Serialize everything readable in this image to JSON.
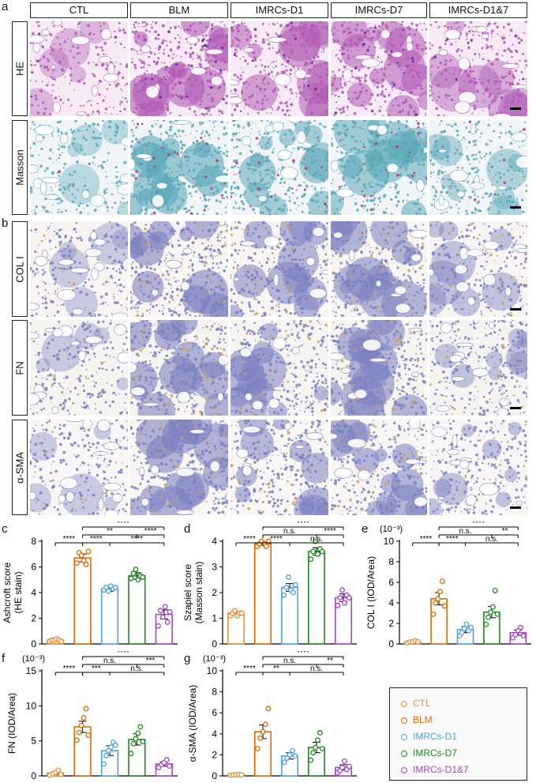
{
  "panel_letters": {
    "a": "a",
    "b": "b",
    "c": "c",
    "d": "d",
    "e": "e",
    "f": "f",
    "g": "g"
  },
  "column_headers": [
    "CTL",
    "BLM",
    "IMRCs-D1",
    "IMRCs-D7",
    "IMRCs-D1&7"
  ],
  "row_headers": [
    "HE",
    "Masson",
    "COL I",
    "FN",
    "α-SMA"
  ],
  "colors": {
    "CTL": "#e69138",
    "BLM": "#e06a00",
    "IMRCs-D1": "#4ea3dd",
    "IMRCs-D7": "#1f8a1f",
    "IMRCs-D1&7": "#a646c9",
    "he_tissue": "#b05ab4",
    "he_dense": "#6a2a96",
    "masson_blue": "#5aa7b8",
    "ihc_blue": "#7a7fc0",
    "ihc_brown": "#c9a06a"
  },
  "legend": [
    "CTL",
    "BLM",
    "IMRCs-D1",
    "IMRCs-D7",
    "IMRCs-D1&7"
  ],
  "chart_data": [
    {
      "panel": "c",
      "type": "bar",
      "ylabel": "Ashcroft score (HE stain)",
      "ylim": [
        0,
        8
      ],
      "yticks": [
        "0",
        "2",
        "4",
        "6",
        "8"
      ],
      "categories": [
        "CTL",
        "BLM",
        "IMRCs-D1",
        "IMRCs-D7",
        "IMRCs-D1&7"
      ],
      "values": [
        0.3,
        6.7,
        4.3,
        5.3,
        2.3
      ],
      "errors": [
        0.1,
        0.3,
        0.2,
        0.25,
        0.35
      ],
      "points": [
        [
          0.2,
          0.3,
          0.3,
          0.4,
          0.3,
          0.2
        ],
        [
          6.3,
          7.1,
          6.9,
          6.5,
          6.2,
          7.2
        ],
        [
          4.2,
          4.4,
          4.1,
          4.5,
          4.3,
          4.4
        ],
        [
          5.1,
          5.5,
          5.8,
          5.0,
          5.3,
          5.2
        ],
        [
          1.4,
          2.6,
          2.1,
          2.9,
          1.7,
          2.5
        ]
      ],
      "significance": [
        {
          "from": 1,
          "to": 0,
          "level": 0,
          "label": "****"
        },
        {
          "from": 1,
          "to": 2,
          "level": 0,
          "label": "****"
        },
        {
          "from": 1,
          "to": 3,
          "level": 1,
          "label": "**"
        },
        {
          "from": 1,
          "to": 4,
          "level": 2,
          "label": "****"
        },
        {
          "from": 3,
          "to": 4,
          "level": 1,
          "label": "****"
        },
        {
          "from": 2,
          "to": 4,
          "level": 0,
          "label": "****"
        }
      ]
    },
    {
      "panel": "d",
      "type": "bar",
      "ylabel": "Szapiel score (Masson stain)",
      "ylim": [
        0,
        4
      ],
      "yticks": [
        "0",
        "1",
        "2",
        "3",
        "4"
      ],
      "categories": [
        "CTL",
        "BLM",
        "IMRCs-D1",
        "IMRCs-D7",
        "IMRCs-D1&7"
      ],
      "values": [
        1.2,
        3.9,
        2.2,
        3.6,
        1.8
      ],
      "errors": [
        0.05,
        0.05,
        0.15,
        0.15,
        0.15
      ],
      "points": [
        [
          1.1,
          1.2,
          1.3,
          1.1,
          1.2,
          1.2
        ],
        [
          3.8,
          3.9,
          4.0,
          3.9,
          3.8,
          4.0
        ],
        [
          1.9,
          2.2,
          2.6,
          2.1,
          2.0,
          2.3
        ],
        [
          3.3,
          3.6,
          4.0,
          3.5,
          3.7,
          3.6
        ],
        [
          1.5,
          1.8,
          2.1,
          1.6,
          1.9,
          1.8
        ]
      ],
      "significance": [
        {
          "from": 1,
          "to": 0,
          "level": 0,
          "label": "****"
        },
        {
          "from": 1,
          "to": 2,
          "level": 0,
          "label": "****"
        },
        {
          "from": 1,
          "to": 3,
          "level": 1,
          "label": "n.s."
        },
        {
          "from": 1,
          "to": 4,
          "level": 2,
          "label": "****"
        },
        {
          "from": 3,
          "to": 4,
          "level": 1,
          "label": "****"
        },
        {
          "from": 2,
          "to": 4,
          "level": 0,
          "label": "n.s."
        }
      ]
    },
    {
      "panel": "e",
      "type": "bar",
      "unit": "(10⁻³)",
      "ylabel": "COL I (IOD/Area)",
      "ylim": [
        0,
        10
      ],
      "yticks": [
        "0",
        "2",
        "4",
        "6",
        "8",
        "10"
      ],
      "categories": [
        "CTL",
        "BLM",
        "IMRCs-D1",
        "IMRCs-D7",
        "IMRCs-D1&7"
      ],
      "values": [
        0.2,
        4.4,
        1.4,
        3.1,
        1.1
      ],
      "errors": [
        0.05,
        0.6,
        0.3,
        0.55,
        0.25
      ],
      "points": [
        [
          0.1,
          0.2,
          0.2,
          0.3,
          0.2
        ],
        [
          2.9,
          4.0,
          4.4,
          5.1,
          6.1,
          3.7
        ],
        [
          0.8,
          1.1,
          1.5,
          1.9,
          1.3,
          1.6
        ],
        [
          1.9,
          2.6,
          3.1,
          3.6,
          5.2,
          2.9
        ],
        [
          0.6,
          0.9,
          1.3,
          1.6,
          0.8
        ]
      ],
      "significance": [
        {
          "from": 1,
          "to": 0,
          "level": 0,
          "label": "****"
        },
        {
          "from": 1,
          "to": 2,
          "level": 0,
          "label": "****"
        },
        {
          "from": 1,
          "to": 3,
          "level": 1,
          "label": "n.s."
        },
        {
          "from": 1,
          "to": 4,
          "level": 2,
          "label": "****"
        },
        {
          "from": 3,
          "to": 4,
          "level": 1,
          "label": "**"
        },
        {
          "from": 2,
          "to": 4,
          "level": 0,
          "label": "n.s."
        }
      ]
    },
    {
      "panel": "f",
      "type": "bar",
      "unit": "(10⁻³)",
      "ylabel": "FN (IOD/Area)",
      "ylim": [
        0,
        15
      ],
      "yticks": [
        "0",
        "5",
        "10",
        "15"
      ],
      "categories": [
        "CTL",
        "BLM",
        "IMRCs-D1",
        "IMRCs-D7",
        "IMRCs-D1&7"
      ],
      "values": [
        0.4,
        7.0,
        3.6,
        5.2,
        1.7
      ],
      "errors": [
        0.2,
        0.8,
        0.7,
        0.8,
        0.3
      ],
      "points": [
        [
          0.1,
          0.3,
          0.5,
          0.8,
          0.2
        ],
        [
          5.1,
          6.2,
          7.2,
          8.3,
          9.6,
          5.8
        ],
        [
          1.7,
          2.9,
          3.6,
          4.1,
          4.8,
          4.4
        ],
        [
          3.2,
          4.6,
          5.3,
          6.1,
          7.0,
          4.9
        ],
        [
          1.2,
          1.6,
          1.9,
          2.3,
          1.4
        ]
      ],
      "significance": [
        {
          "from": 1,
          "to": 0,
          "level": 0,
          "label": "****"
        },
        {
          "from": 1,
          "to": 2,
          "level": 0,
          "label": "***"
        },
        {
          "from": 1,
          "to": 3,
          "level": 1,
          "label": "n.s."
        },
        {
          "from": 1,
          "to": 4,
          "level": 2,
          "label": "****"
        },
        {
          "from": 3,
          "to": 4,
          "level": 1,
          "label": "***"
        },
        {
          "from": 2,
          "to": 4,
          "level": 0,
          "label": "n.s."
        }
      ]
    },
    {
      "panel": "g",
      "type": "bar",
      "unit": "(10⁻³)",
      "ylabel": "α-SMA (IOD/Area)",
      "ylim": [
        0,
        10
      ],
      "yticks": [
        "0",
        "2",
        "4",
        "6",
        "8",
        "10"
      ],
      "categories": [
        "CTL",
        "BLM",
        "IMRCs-D1",
        "IMRCs-D7",
        "IMRCs-D1&7"
      ],
      "values": [
        0.1,
        4.2,
        1.9,
        2.7,
        0.8
      ],
      "errors": [
        0.05,
        0.65,
        0.3,
        0.5,
        0.25
      ],
      "points": [
        [
          0.05,
          0.1,
          0.1,
          0.15,
          0.1
        ],
        [
          2.6,
          3.6,
          4.2,
          4.9,
          6.4
        ],
        [
          1.3,
          1.7,
          2.0,
          2.4,
          1.9
        ],
        [
          1.5,
          2.2,
          2.7,
          3.4,
          4.1,
          2.6
        ],
        [
          0.3,
          0.5,
          0.8,
          1.4,
          0.6,
          0.9
        ]
      ],
      "significance": [
        {
          "from": 1,
          "to": 0,
          "level": 0,
          "label": "****"
        },
        {
          "from": 1,
          "to": 2,
          "level": 0,
          "label": "**"
        },
        {
          "from": 1,
          "to": 3,
          "level": 1,
          "label": "n.s."
        },
        {
          "from": 1,
          "to": 4,
          "level": 2,
          "label": "****"
        },
        {
          "from": 3,
          "to": 4,
          "level": 1,
          "label": "**"
        },
        {
          "from": 2,
          "to": 4,
          "level": 0,
          "label": "n.s."
        }
      ]
    }
  ]
}
